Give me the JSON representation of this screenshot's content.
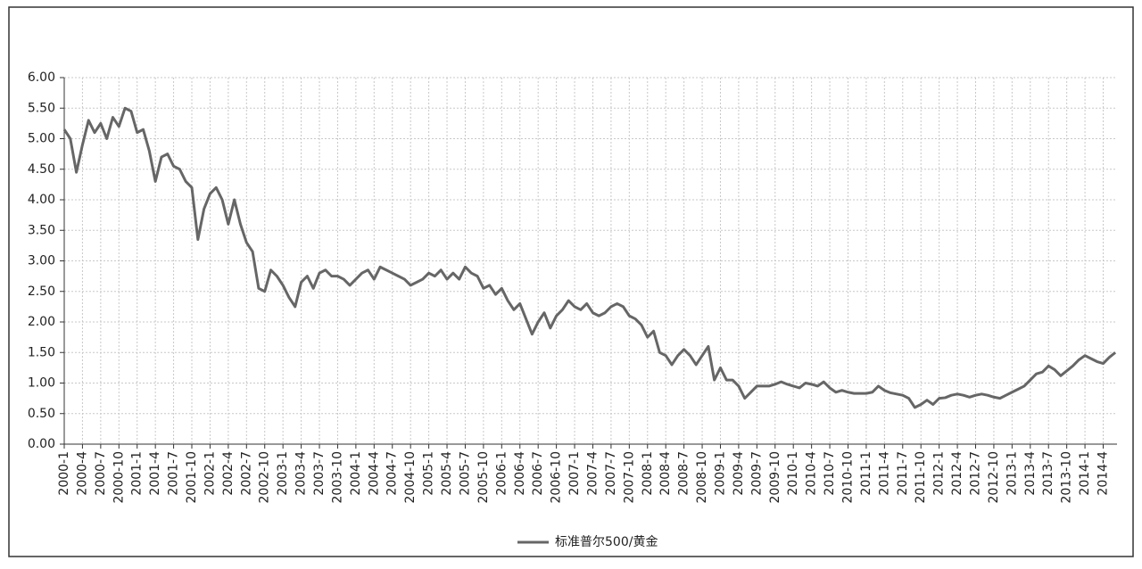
{
  "chart_data": {
    "type": "line",
    "categories": [
      "2000-1",
      null,
      null,
      "2000-4",
      null,
      null,
      "2000-7",
      null,
      null,
      "2000-10",
      null,
      null,
      "2001-1",
      null,
      null,
      "2001-4",
      null,
      null,
      "2001-7",
      null,
      null,
      "2001-10",
      null,
      null,
      "2002-1",
      null,
      null,
      "2002-4",
      null,
      null,
      "2002-7",
      null,
      null,
      "2002-10",
      null,
      null,
      "2003-1",
      null,
      null,
      "2003-4",
      null,
      null,
      "2003-7",
      null,
      null,
      "2003-10",
      null,
      null,
      "2004-1",
      null,
      null,
      "2004-4",
      null,
      null,
      "2004-7",
      null,
      null,
      "2004-10",
      null,
      null,
      "2005-1",
      null,
      null,
      "2005-4",
      null,
      null,
      "2005-7",
      null,
      null,
      "2005-10",
      null,
      null,
      "2006-1",
      null,
      null,
      "2006-4",
      null,
      null,
      "2006-7",
      null,
      null,
      "2006-10",
      null,
      null,
      "2007-1",
      null,
      null,
      "2007-4",
      null,
      null,
      "2007-7",
      null,
      null,
      "2007-10",
      null,
      null,
      "2008-1",
      null,
      null,
      "2008-4",
      null,
      null,
      "2008-7",
      null,
      null,
      "2008-10",
      null,
      null,
      "2009-1",
      null,
      null,
      "2009-4",
      null,
      null,
      "2009-7",
      null,
      null,
      "2009-10",
      null,
      null,
      "2010-1",
      null,
      null,
      "2010-4",
      null,
      null,
      "2010-7",
      null,
      null,
      "2010-10",
      null,
      null,
      "2011-1",
      null,
      null,
      "2011-4",
      null,
      null,
      "2011-7",
      null,
      null,
      "2011-10",
      null,
      null,
      "2012-1",
      null,
      null,
      "2012-4",
      null,
      null,
      "2012-7",
      null,
      null,
      "2012-10",
      null,
      null,
      "2013-1",
      null,
      null,
      "2013-4",
      null,
      null,
      "2013-7",
      null,
      null,
      "2013-10",
      null,
      null,
      "2014-1",
      null,
      null,
      "2014-4",
      null,
      null
    ],
    "series": [
      {
        "name": "标准普尔500/黄金",
        "color": "#666666",
        "values": [
          5.15,
          5.0,
          4.45,
          4.9,
          5.3,
          5.1,
          5.25,
          5.0,
          5.35,
          5.2,
          5.5,
          5.45,
          5.1,
          5.15,
          4.8,
          4.3,
          4.7,
          4.75,
          4.55,
          4.5,
          4.3,
          4.2,
          3.35,
          3.85,
          4.1,
          4.2,
          4.0,
          3.6,
          4.0,
          3.6,
          3.3,
          3.15,
          2.55,
          2.5,
          2.85,
          2.75,
          2.6,
          2.4,
          2.25,
          2.65,
          2.75,
          2.55,
          2.8,
          2.85,
          2.75,
          2.75,
          2.7,
          2.6,
          2.7,
          2.8,
          2.85,
          2.7,
          2.9,
          2.85,
          2.8,
          2.75,
          2.7,
          2.6,
          2.65,
          2.7,
          2.8,
          2.75,
          2.85,
          2.7,
          2.8,
          2.7,
          2.9,
          2.8,
          2.75,
          2.55,
          2.6,
          2.45,
          2.55,
          2.35,
          2.2,
          2.3,
          2.05,
          1.8,
          2.0,
          2.15,
          1.9,
          2.1,
          2.2,
          2.35,
          2.25,
          2.2,
          2.3,
          2.15,
          2.1,
          2.15,
          2.25,
          2.3,
          2.25,
          2.1,
          2.05,
          1.95,
          1.75,
          1.85,
          1.5,
          1.45,
          1.3,
          1.45,
          1.55,
          1.45,
          1.3,
          1.45,
          1.6,
          1.05,
          1.25,
          1.05,
          1.05,
          0.95,
          0.75,
          0.85,
          0.95,
          0.95,
          0.95,
          0.98,
          1.02,
          0.98,
          0.95,
          0.92,
          1.0,
          0.98,
          0.95,
          1.02,
          0.92,
          0.85,
          0.88,
          0.85,
          0.83,
          0.83,
          0.83,
          0.85,
          0.95,
          0.88,
          0.84,
          0.82,
          0.8,
          0.75,
          0.6,
          0.65,
          0.72,
          0.65,
          0.75,
          0.76,
          0.8,
          0.82,
          0.8,
          0.77,
          0.8,
          0.82,
          0.8,
          0.77,
          0.75,
          0.8,
          0.85,
          0.9,
          0.95,
          1.05,
          1.15,
          1.18,
          1.28,
          1.22,
          1.12,
          1.2,
          1.28,
          1.38,
          1.45,
          1.4,
          1.35,
          1.32,
          1.42,
          1.5
        ]
      }
    ],
    "ylim": [
      0,
      6
    ],
    "yticks": [
      {
        "value": 0,
        "label": "0.00"
      },
      {
        "value": 0.5,
        "label": "0.50"
      },
      {
        "value": 1,
        "label": "1.00"
      },
      {
        "value": 1.5,
        "label": "1.50"
      },
      {
        "value": 2,
        "label": "2.00"
      },
      {
        "value": 2.5,
        "label": "2.50"
      },
      {
        "value": 3,
        "label": "3.00"
      },
      {
        "value": 3.5,
        "label": "3.50"
      },
      {
        "value": 4,
        "label": "4.00"
      },
      {
        "value": 4.5,
        "label": "4.50"
      },
      {
        "value": 5,
        "label": "5.00"
      },
      {
        "value": 5.5,
        "label": "5.50"
      },
      {
        "value": 6,
        "label": "6.00"
      }
    ],
    "grid": true
  }
}
